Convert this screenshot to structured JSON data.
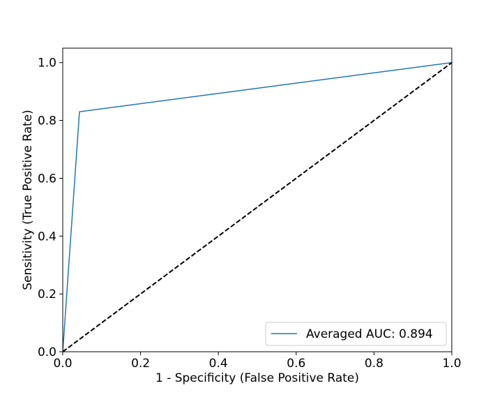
{
  "chart_data": {
    "type": "line",
    "title": "",
    "xlabel": "1 - Specificity (False Positive Rate)",
    "ylabel": "Sensitivity (True Positive Rate)",
    "xlim": [
      0.0,
      1.0
    ],
    "ylim": [
      0.0,
      1.05
    ],
    "xticks": [
      0.0,
      0.2,
      0.4,
      0.6,
      0.8,
      1.0
    ],
    "yticks": [
      0.0,
      0.2,
      0.4,
      0.6,
      0.8,
      1.0
    ],
    "xtick_labels": [
      "0.0",
      "0.2",
      "0.4",
      "0.6",
      "0.8",
      "1.0"
    ],
    "ytick_labels": [
      "0.0",
      "0.2",
      "0.4",
      "0.6",
      "0.8",
      "1.0"
    ],
    "grid": false,
    "legend_position": "lower-right",
    "series": [
      {
        "name": "Averaged AUC: 0.894",
        "color": "#1f77b4",
        "style": "solid",
        "x": [
          0.0,
          0.043,
          1.0
        ],
        "y": [
          0.0,
          0.83,
          1.0
        ]
      },
      {
        "color": "#000000",
        "style": "dashed",
        "x": [
          0.0,
          1.0
        ],
        "y": [
          0.0,
          1.0
        ]
      }
    ]
  }
}
